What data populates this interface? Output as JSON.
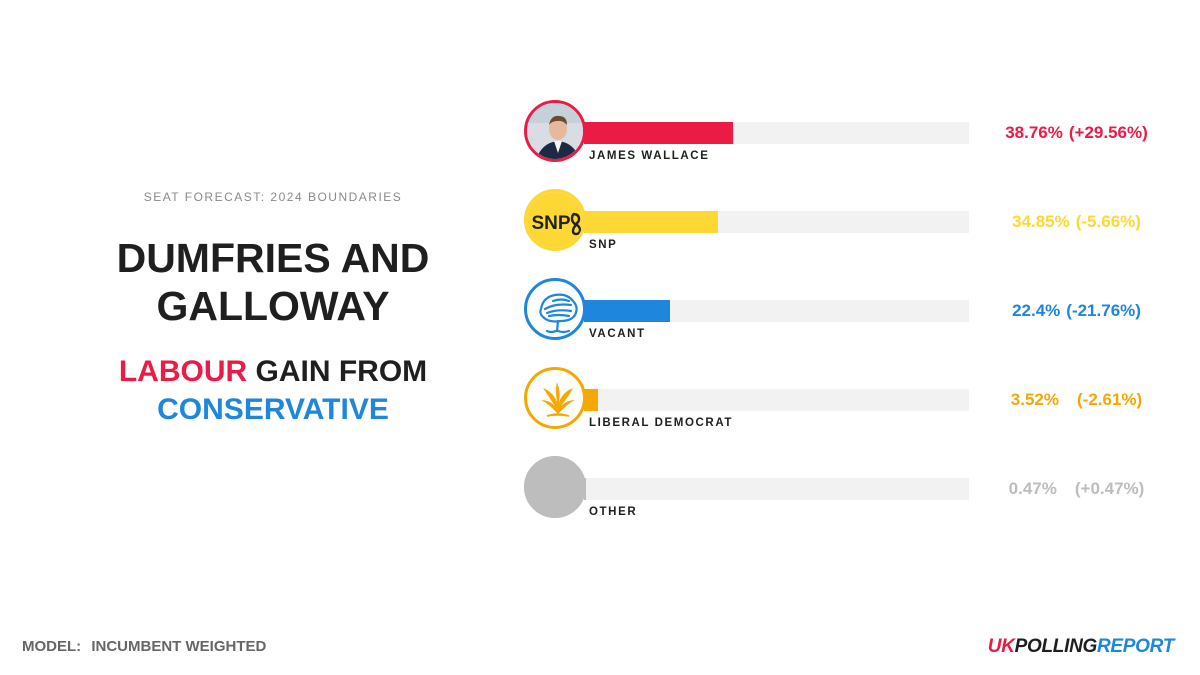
{
  "header": {
    "subtitle": "SEAT FORECAST: 2024 BOUNDARIES"
  },
  "seat": {
    "line1": "DUMFRIES AND",
    "line2": "GALLOWAY"
  },
  "result": {
    "winner": "LABOUR",
    "middle": "GAIN FROM",
    "loser": "CONSERVATIVE",
    "winner_color": "#ea1b44",
    "loser_color": "#1e86dd"
  },
  "footer": {
    "model_label": "MODEL:",
    "model_value": "INCUMBENT WEIGHTED"
  },
  "brand": {
    "part1": "UK",
    "part2": "POLLING",
    "part3": "REPORT"
  },
  "chart_data": {
    "type": "bar",
    "orientation": "horizontal",
    "xlim": [
      0,
      100
    ],
    "categories": [
      "JAMES WALLACE",
      "SNP",
      "VACANT",
      "LIBERAL DEMOCRAT",
      "OTHER"
    ],
    "values": [
      38.76,
      34.85,
      22.4,
      3.52,
      0.47
    ],
    "changes": [
      29.56,
      -5.66,
      -21.76,
      -2.61,
      0.47
    ],
    "value_labels": [
      "38.76%",
      "34.85%",
      "22.4%",
      "3.52%",
      "0.47%"
    ],
    "change_labels": [
      "(+29.56%)",
      "(-5.66%)",
      "(-21.76%)",
      "(-2.61%)",
      "(+0.47%)"
    ],
    "colors": [
      "#ea1b44",
      "#fdd835",
      "#1e86dd",
      "#f5a800",
      "#bdbdbd"
    ],
    "icons": [
      "candidate-photo",
      "snp-logo",
      "conservative-tree-logo",
      "libdem-bird-logo",
      "other-circle"
    ],
    "logo_text": {
      "snp": "SNP"
    }
  }
}
